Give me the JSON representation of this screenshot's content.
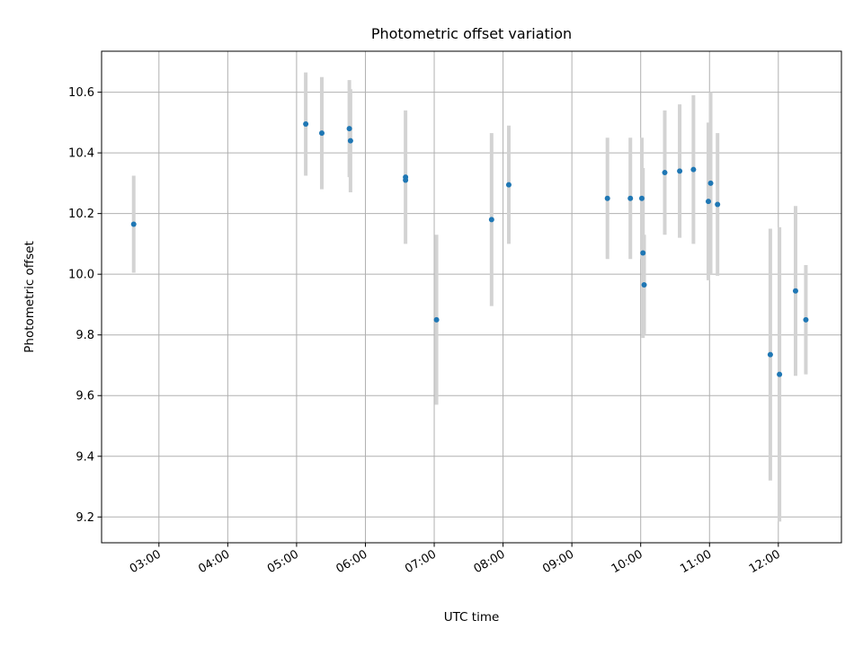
{
  "chart_data": {
    "type": "scatter",
    "title": "Photometric offset variation",
    "xlabel": "UTC time",
    "ylabel": "Photometric offset",
    "xlim": [
      "02:10",
      "12:55"
    ],
    "ylim": [
      9.115,
      10.735
    ],
    "x_ticks": [
      "03:00",
      "04:00",
      "05:00",
      "06:00",
      "07:00",
      "08:00",
      "09:00",
      "10:00",
      "11:00",
      "12:00"
    ],
    "y_ticks": [
      9.2,
      9.4,
      9.6,
      9.8,
      10.0,
      10.2,
      10.4,
      10.6
    ],
    "y_tick_labels": [
      "9.2",
      "9.4",
      "9.6",
      "9.8",
      "10.0",
      "10.2",
      "10.4",
      "10.6"
    ],
    "grid": true,
    "marker_color": "#1f77b4",
    "errorbar_color": "#d3d3d3",
    "points": [
      {
        "t": "02:38",
        "y": 10.165,
        "err": 0.16
      },
      {
        "t": "05:08",
        "y": 10.495,
        "err": 0.17
      },
      {
        "t": "05:22",
        "y": 10.465,
        "err": 0.185
      },
      {
        "t": "05:46",
        "y": 10.48,
        "err": 0.16
      },
      {
        "t": "05:47",
        "y": 10.44,
        "err": 0.17
      },
      {
        "t": "06:35",
        "y": 10.32,
        "err": 0.22
      },
      {
        "t": "06:35",
        "y": 10.31,
        "err": 0.0
      },
      {
        "t": "07:02",
        "y": 9.85,
        "err": 0.28
      },
      {
        "t": "07:50",
        "y": 10.18,
        "err": 0.285
      },
      {
        "t": "08:05",
        "y": 10.295,
        "err": 0.195
      },
      {
        "t": "09:31",
        "y": 10.25,
        "err": 0.2
      },
      {
        "t": "09:51",
        "y": 10.25,
        "err": 0.2
      },
      {
        "t": "10:01",
        "y": 10.25,
        "err": 0.2
      },
      {
        "t": "10:02",
        "y": 10.07,
        "err": 0.28
      },
      {
        "t": "10:03",
        "y": 9.965,
        "err": 0.165
      },
      {
        "t": "10:21",
        "y": 10.335,
        "err": 0.205
      },
      {
        "t": "10:34",
        "y": 10.34,
        "err": 0.22
      },
      {
        "t": "10:46",
        "y": 10.345,
        "err": 0.245
      },
      {
        "t": "10:59",
        "y": 10.24,
        "err": 0.26
      },
      {
        "t": "11:01",
        "y": 10.3,
        "err": 0.3
      },
      {
        "t": "11:07",
        "y": 10.23,
        "err": 0.235
      },
      {
        "t": "11:53",
        "y": 9.735,
        "err": 0.415
      },
      {
        "t": "12:01",
        "y": 9.67,
        "err": 0.485
      },
      {
        "t": "12:15",
        "y": 9.945,
        "err": 0.28
      },
      {
        "t": "12:24",
        "y": 9.85,
        "err": 0.18
      }
    ]
  }
}
